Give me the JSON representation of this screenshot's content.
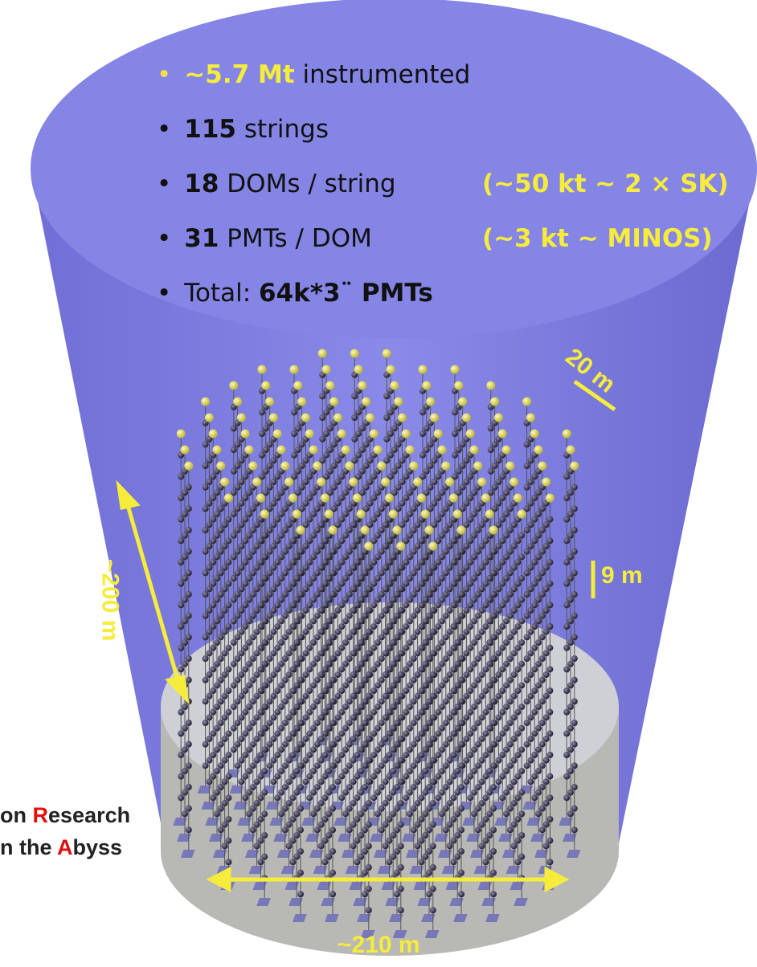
{
  "bullets": [
    {
      "bold": "~5.7 Mt",
      "text": "instrumented"
    },
    {
      "bold": "115",
      "text": "strings"
    },
    {
      "bold": "18",
      "text": "DOMs / string"
    },
    {
      "bold": "31",
      "text": "PMTs / DOM"
    },
    {
      "text": "Total:",
      "bold": "64k*3¨ PMTs"
    }
  ],
  "notes": [
    "(~50 kt ~ 2 × SK)",
    "(~3 kt ~ MINOS)"
  ],
  "dimensions": {
    "spacing": "20 m",
    "dom_spacing": "9 m",
    "height": "~200 m",
    "diameter": "~210 m"
  },
  "caption": {
    "line1": {
      "before": "on",
      "highlight": "R",
      "after": "esearch"
    },
    "line2": {
      "before": "n the",
      "highlight": "A",
      "after": "byss"
    }
  }
}
